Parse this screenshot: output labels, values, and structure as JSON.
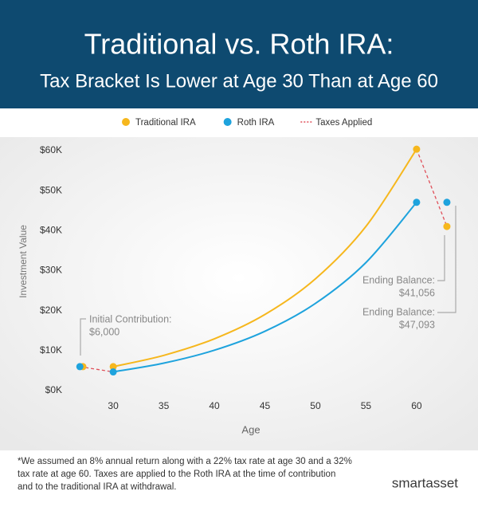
{
  "chart_data": {
    "type": "line",
    "title": "Traditional vs. Roth IRA:",
    "subtitle": "Tax Bracket Is Lower at Age 30 Than at Age 60",
    "xlabel": "Age",
    "ylabel": "Investment Value",
    "xlim": [
      25.5,
      64.5
    ],
    "ylim": [
      0,
      63000
    ],
    "xticks": [
      30,
      35,
      40,
      45,
      50,
      55,
      60
    ],
    "yticks": [
      {
        "value": 0,
        "label": "$0K"
      },
      {
        "value": 10000,
        "label": "$10K"
      },
      {
        "value": 20000,
        "label": "$20K"
      },
      {
        "value": 30000,
        "label": "$30K"
      },
      {
        "value": 40000,
        "label": "$40K"
      },
      {
        "value": 50000,
        "label": "$50K"
      },
      {
        "value": 60000,
        "label": "$60K"
      }
    ],
    "series": [
      {
        "name": "Traditional IRA",
        "color": "#f6b71d",
        "x": [
          30,
          35,
          40,
          45,
          50,
          55,
          60
        ],
        "values": [
          6000,
          8816,
          12954,
          19033,
          27966,
          41092,
          60376
        ]
      },
      {
        "name": "Roth IRA",
        "color": "#1ea3dd",
        "x": [
          30,
          35,
          40,
          45,
          50,
          55,
          60
        ],
        "values": [
          4680,
          6876,
          10104,
          14846,
          21813,
          32051,
          47093
        ]
      },
      {
        "name": "Taxes Applied",
        "color": "#e0505a",
        "dashed": true,
        "x": [
          26.7,
          30,
          60,
          60,
          63
        ],
        "values": [
          6000,
          4680,
          null,
          60376,
          41056
        ]
      }
    ],
    "points": {
      "x": [
        27,
        26.7,
        63,
        63
      ],
      "values": [
        6000,
        6000,
        41056,
        47093
      ],
      "colors": [
        "#f6b71d",
        "#1ea3dd",
        "#f6b71d",
        "#1ea3dd"
      ]
    },
    "annotations": [
      {
        "lines": [
          "Initial Contribution:",
          "$6,000"
        ]
      },
      {
        "lines": [
          "Ending Balance:",
          "$41,056"
        ]
      },
      {
        "lines": [
          "Ending Balance:",
          "$47,093"
        ]
      }
    ],
    "footnote": [
      "*We assumed an 8% annual return along with a 22% tax rate at age 30 and a 32%",
      "tax rate at age 60. Taxes are applied to the Roth IRA at the time of contribution",
      "and to the traditional IRA at withdrawal."
    ],
    "logo": "smartasset"
  }
}
